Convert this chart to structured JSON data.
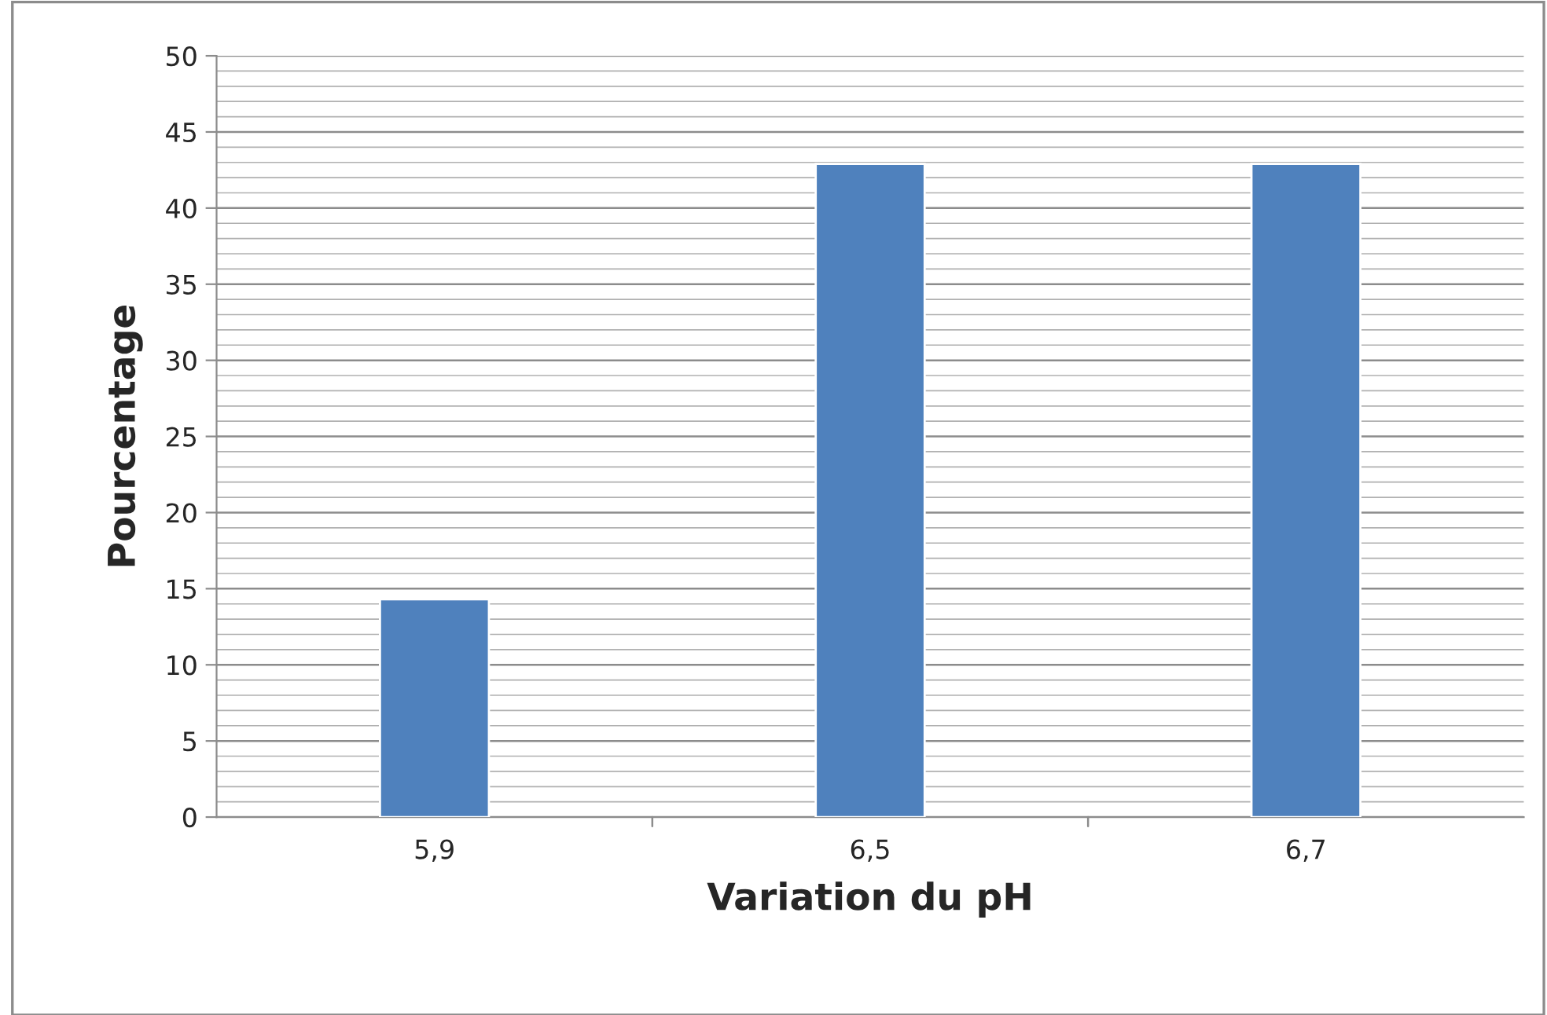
{
  "chart_data": {
    "type": "bar",
    "xlabel": "Variation du pH",
    "ylabel": "Pourcentage",
    "categories": [
      "5,9",
      "6,5",
      "6,7"
    ],
    "values": [
      14.3,
      42.9,
      42.9
    ],
    "color": "#4f81bd",
    "ylim": [
      0,
      50
    ],
    "yticks": [
      0,
      5,
      10,
      15,
      20,
      25,
      30,
      35,
      40,
      45,
      50
    ],
    "grid": "y",
    "legend": false
  }
}
